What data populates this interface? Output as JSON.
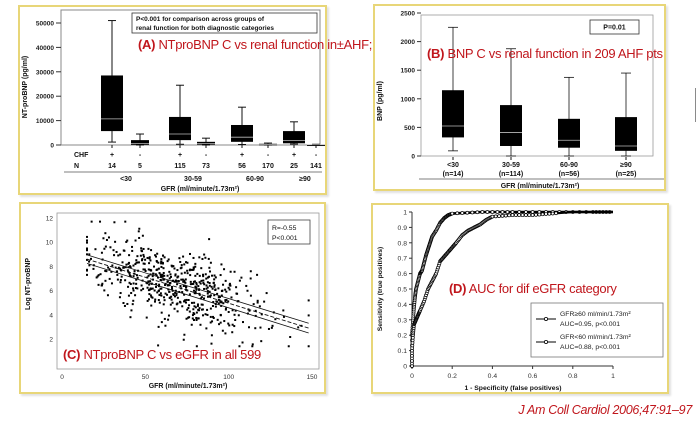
{
  "colors": {
    "overlay_red": "#c0161c",
    "panel_border": "#e8d678",
    "box_fill": "#000000",
    "median_line": "#bbbbbb"
  },
  "overlays": {
    "a": {
      "prefix": "(A)",
      "text": "NTproBNP C vs renal function in±AHF;"
    },
    "b": {
      "prefix": "(B)",
      "text": "BNP C vs renal function in 209 AHF pts"
    },
    "c": {
      "prefix": "(C)",
      "text": "NTproBNP C vs eGFR in  all 599"
    },
    "d": {
      "prefix": "(D)",
      "text": "AUC for  dif eGFR category"
    }
  },
  "citation": "J Am Coll Cardiol 2006;47:91–97",
  "chart_data": [
    {
      "id": "A",
      "type": "box",
      "title": "",
      "annotation": [
        "P<0.001 for comparison across groups of",
        "renal function for both diagnostic categories"
      ],
      "ylabel": "NT-proBNP (pg/ml)",
      "xlabel": "GFR (ml/minute/1.73m²)",
      "ylim": [
        0,
        52000
      ],
      "yticks": [
        0,
        10000,
        20000,
        30000,
        40000,
        50000
      ],
      "ytick_labels": [
        "0",
        "10000",
        "20000",
        "30000",
        "40000",
        "50000"
      ],
      "row_labels": {
        "chf": "CHF",
        "n": "N"
      },
      "categories": [
        "<30",
        "30-59",
        "60-90",
        "≥90"
      ],
      "groups": [
        {
          "category": "<30",
          "chf": "+",
          "n": "14",
          "min": 1200,
          "q1": 5700,
          "median": 10700,
          "q3": 28500,
          "max": 51000
        },
        {
          "category": "<30",
          "chf": "-",
          "n": "5",
          "min": 0,
          "q1": 100,
          "median": 600,
          "q3": 2000,
          "max": 4500
        },
        {
          "category": "30-59",
          "chf": "+",
          "n": "115",
          "min": 300,
          "q1": 2000,
          "median": 4500,
          "q3": 11500,
          "max": 24500
        },
        {
          "category": "30-59",
          "chf": "-",
          "n": "73",
          "min": 0,
          "q1": 200,
          "median": 600,
          "q3": 1300,
          "max": 2800
        },
        {
          "category": "60-90",
          "chf": "+",
          "n": "56",
          "min": 200,
          "q1": 1300,
          "median": 3200,
          "q3": 8200,
          "max": 15500
        },
        {
          "category": "60-90",
          "chf": "-",
          "n": "170",
          "min": 0,
          "q1": 100,
          "median": 250,
          "q3": 500,
          "max": 800
        },
        {
          "category": "≥90",
          "chf": "+",
          "n": "25",
          "min": 400,
          "q1": 700,
          "median": 1800,
          "q3": 5700,
          "max": 9500
        },
        {
          "category": "≥90",
          "chf": "-",
          "n": "141",
          "min": 0,
          "q1": 50,
          "median": 100,
          "q3": 200,
          "max": 300
        }
      ]
    },
    {
      "id": "B",
      "type": "box",
      "annotation": [
        "P=0.01"
      ],
      "ylabel": "BNP (pg/ml)",
      "xlabel": "GFR (ml/minute/1.73m²)",
      "ylim": [
        0,
        2500
      ],
      "yticks": [
        0,
        500,
        1000,
        1500,
        2000,
        2500
      ],
      "ytick_labels": [
        "0",
        "500",
        "1000",
        "1500",
        "2000",
        "2500"
      ],
      "categories": [
        "<30",
        "30-59",
        "60-90",
        "≥90"
      ],
      "n_labels": [
        "(n=14)",
        "(n=114)",
        "(n=56)",
        "(n=25)"
      ],
      "groups": [
        {
          "category": "<30",
          "min": 90,
          "q1": 325,
          "median": 525,
          "q3": 1150,
          "max": 2250
        },
        {
          "category": "30-59",
          "min": 0,
          "q1": 175,
          "median": 410,
          "q3": 890,
          "max": 1875
        },
        {
          "category": "60-90",
          "min": 0,
          "q1": 145,
          "median": 275,
          "q3": 650,
          "max": 1375
        },
        {
          "category": "≥90",
          "min": 0,
          "q1": 90,
          "median": 175,
          "q3": 680,
          "max": 1450
        }
      ]
    },
    {
      "id": "C",
      "type": "scatter",
      "annotation": [
        "R=-0.55",
        "P<0.001"
      ],
      "ylabel": "Log NT-proBNP",
      "xlabel": "GFR (ml/minute/1.73m²)",
      "xlim": [
        0,
        150
      ],
      "ylim": [
        0.8,
        12.3
      ],
      "xticks": [
        0,
        50,
        100,
        150
      ],
      "xtick_labels": [
        "0",
        "50",
        "100",
        "150"
      ],
      "yticks": [
        2,
        4,
        6,
        8,
        10,
        12
      ],
      "ytick_labels": [
        "2",
        "4",
        "6",
        "8",
        "10",
        "12"
      ],
      "n_points": 599,
      "regression": {
        "x": [
          15,
          148
        ],
        "y": [
          8.6,
          2.9
        ],
        "ci_halfwidth": [
          0.35,
          0.4
        ]
      },
      "point_cloud_model": {
        "x_mean": 70,
        "x_sd": 27,
        "x_min": 15,
        "x_max": 148,
        "intercept": 9.25,
        "slope": -0.0428,
        "residual_sd": 1.55,
        "y_min": 1.4,
        "y_max": 11.7,
        "seed": 599
      }
    },
    {
      "id": "D",
      "type": "line",
      "ylabel": "Sensitivity (true positives)",
      "xlabel": "1 - Specificity (false positives)",
      "xlim": [
        0,
        1
      ],
      "ylim": [
        0,
        1
      ],
      "xticks": [
        0,
        0.2,
        0.4,
        0.6,
        0.8,
        1
      ],
      "xtick_labels": [
        "0",
        "0.2",
        "0.4",
        "0.6",
        "0.8",
        "1"
      ],
      "yticks": [
        0,
        0.1,
        0.2,
        0.3,
        0.4,
        0.5,
        0.6,
        0.7,
        0.8,
        0.9,
        1
      ],
      "ytick_labels": [
        "0",
        "0.1",
        "0.2",
        "0.3",
        "0.4",
        "0.5",
        "0.6",
        "0.7",
        "0.8",
        "0.9",
        "1"
      ],
      "series": [
        {
          "name": "GFR≥60 ml/min/1.73m²",
          "name_line2": "AUC=0.95, p<0.001",
          "auc": 0.95,
          "x": [
            0,
            0.0,
            0.005,
            0.01,
            0.015,
            0.02,
            0.03,
            0.04,
            0.05,
            0.06,
            0.07,
            0.08,
            0.09,
            0.1,
            0.12,
            0.14,
            0.16,
            0.18,
            0.2,
            0.35,
            0.5,
            0.7,
            0.9,
            1.0
          ],
          "y": [
            0,
            0.2,
            0.3,
            0.38,
            0.45,
            0.5,
            0.55,
            0.6,
            0.62,
            0.67,
            0.72,
            0.76,
            0.8,
            0.84,
            0.88,
            0.93,
            0.96,
            0.98,
            0.99,
            1.0,
            1.0,
            1.0,
            1.0,
            1.0
          ]
        },
        {
          "name": "GFR<60 ml/min/1.73m²",
          "name_line2": "AUC=0.88, p<0.001",
          "auc": 0.88,
          "x": [
            0,
            0.0,
            0.005,
            0.01,
            0.02,
            0.03,
            0.04,
            0.06,
            0.08,
            0.1,
            0.12,
            0.14,
            0.16,
            0.18,
            0.2,
            0.22,
            0.25,
            0.28,
            0.31,
            0.34,
            0.37,
            0.4,
            0.5,
            0.6,
            0.7,
            0.8,
            1.0
          ],
          "y": [
            0,
            0.1,
            0.2,
            0.27,
            0.3,
            0.33,
            0.36,
            0.42,
            0.5,
            0.55,
            0.6,
            0.68,
            0.71,
            0.74,
            0.77,
            0.8,
            0.85,
            0.88,
            0.9,
            0.92,
            0.95,
            0.97,
            0.98,
            0.98,
            0.99,
            1.0,
            1.0
          ]
        }
      ]
    }
  ]
}
